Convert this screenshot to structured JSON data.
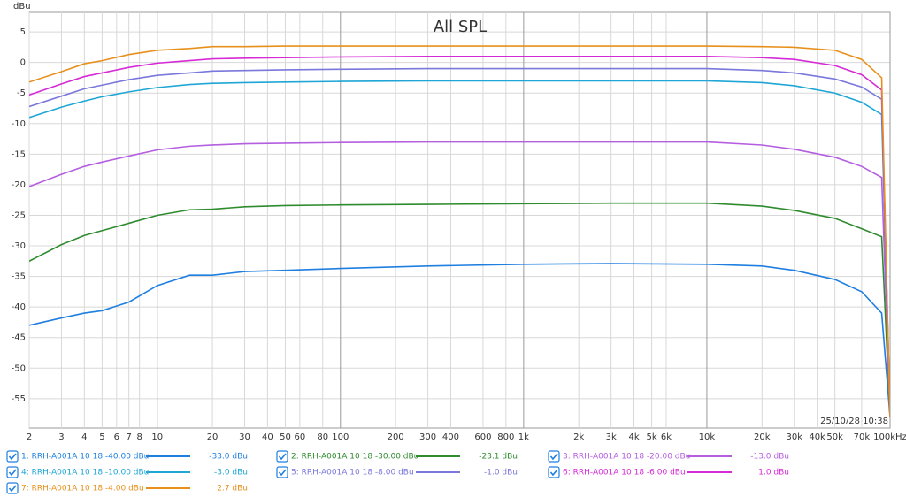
{
  "chart_data": {
    "type": "line",
    "title": "All SPL",
    "y_label": "dBu",
    "timestamp": "25/10/28 10:38",
    "log_x": true,
    "grid": true,
    "xlim": [
      2,
      100000
    ],
    "ylim": [
      -59.8,
      8.2
    ],
    "xticks": [
      2,
      3,
      4,
      5,
      6,
      7,
      8,
      10,
      20,
      30,
      40,
      50,
      60,
      80,
      100,
      200,
      300,
      400,
      600,
      800,
      {
        "value": 1000,
        "label": "1k"
      },
      {
        "value": 2000,
        "label": "2k"
      },
      {
        "value": 3000,
        "label": "3k"
      },
      {
        "value": 4000,
        "label": "4k"
      },
      {
        "value": 5000,
        "label": "5k"
      },
      {
        "value": 6000,
        "label": "6k"
      },
      {
        "value": 10000,
        "label": "10k"
      },
      {
        "value": 20000,
        "label": "20k"
      },
      {
        "value": 30000,
        "label": "30k"
      },
      {
        "value": 40000,
        "label": "40k"
      },
      {
        "value": 50000,
        "label": "50k"
      },
      {
        "value": 70000,
        "label": "70k"
      },
      {
        "value": 100000,
        "label": "100kHz"
      }
    ],
    "yticks": [
      5,
      0,
      -5,
      -10,
      -15,
      -20,
      -25,
      -30,
      -35,
      -40,
      -45,
      -50,
      -55
    ],
    "x": [
      2,
      3,
      4,
      5,
      7,
      10,
      15,
      20,
      30,
      50,
      100,
      300,
      1000,
      3000,
      10000,
      20000,
      30000,
      50000,
      70000,
      90000,
      100000
    ],
    "series": [
      {
        "name": "1: RRH-A001A 10 18 -40.00 dBu",
        "legend_value": "-33.0 dBu",
        "color": "#1f7fe0",
        "values": [
          -43,
          -41.8,
          -41,
          -40.6,
          -39.2,
          -36.5,
          -34.8,
          -34.8,
          -34.2,
          -34,
          -33.7,
          -33.3,
          -33,
          -32.9,
          -33,
          -33.3,
          -34,
          -35.5,
          -37.5,
          -41,
          -58
        ]
      },
      {
        "name": "2: RRH-A001A 10 18 -30.00 dBu",
        "legend_value": "-23.1 dBu",
        "color": "#2e8b2e",
        "values": [
          -32.5,
          -29.8,
          -28.3,
          -27.5,
          -26.3,
          -25,
          -24.1,
          -24,
          -23.6,
          -23.4,
          -23.3,
          -23.2,
          -23.1,
          -23,
          -23,
          -23.5,
          -24.2,
          -25.5,
          -27.2,
          -28.5,
          -58
        ]
      },
      {
        "name": "3: RRH-A001A 10 18 -20.00 dBu",
        "legend_value": "-13.0 dBu",
        "color": "#b45ee0",
        "values": [
          -20.3,
          -18.3,
          -17,
          -16.3,
          -15.3,
          -14.3,
          -13.7,
          -13.5,
          -13.3,
          -13.2,
          -13.1,
          -13,
          -13,
          -13,
          -13,
          -13.5,
          -14.2,
          -15.5,
          -17,
          -18.8,
          -58
        ]
      },
      {
        "name": "4: RRH-A001A 10 18 -10.00 dBu",
        "legend_value": "-3.0 dBu",
        "color": "#1fa6d6",
        "values": [
          -9,
          -7.3,
          -6.3,
          -5.6,
          -4.8,
          -4.1,
          -3.6,
          -3.4,
          -3.3,
          -3.2,
          -3.1,
          -3,
          -3,
          -3,
          -3,
          -3.3,
          -3.8,
          -5,
          -6.5,
          -8.5,
          -58
        ]
      },
      {
        "name": "5: RRH-A001A 10 18 -8.00 dBu",
        "legend_value": "-1.0 dBu",
        "color": "#7a78dc",
        "values": [
          -7.2,
          -5.5,
          -4.3,
          -3.7,
          -2.8,
          -2.1,
          -1.7,
          -1.4,
          -1.3,
          -1.2,
          -1.1,
          -1,
          -1,
          -1,
          -1,
          -1.3,
          -1.7,
          -2.7,
          -4,
          -6,
          -58
        ]
      },
      {
        "name": "6: RRH-A001A 10 18 -6.00 dBu",
        "legend_value": "1.0 dBu",
        "color": "#d62ad6",
        "values": [
          -5.3,
          -3.5,
          -2.3,
          -1.7,
          -0.8,
          -0.1,
          0.3,
          0.6,
          0.7,
          0.8,
          0.9,
          1,
          1,
          1,
          1,
          0.8,
          0.5,
          -0.5,
          -2,
          -4.5,
          -58
        ]
      },
      {
        "name": "7: RRH-A001A 10 18 -4.00 dBu",
        "legend_value": "2.7 dBu",
        "color": "#e8901c",
        "values": [
          -3.2,
          -1.5,
          -0.2,
          0.3,
          1.3,
          2,
          2.3,
          2.6,
          2.6,
          2.7,
          2.7,
          2.7,
          2.7,
          2.7,
          2.7,
          2.6,
          2.5,
          2,
          0.5,
          -2.5,
          -58
        ]
      }
    ]
  }
}
